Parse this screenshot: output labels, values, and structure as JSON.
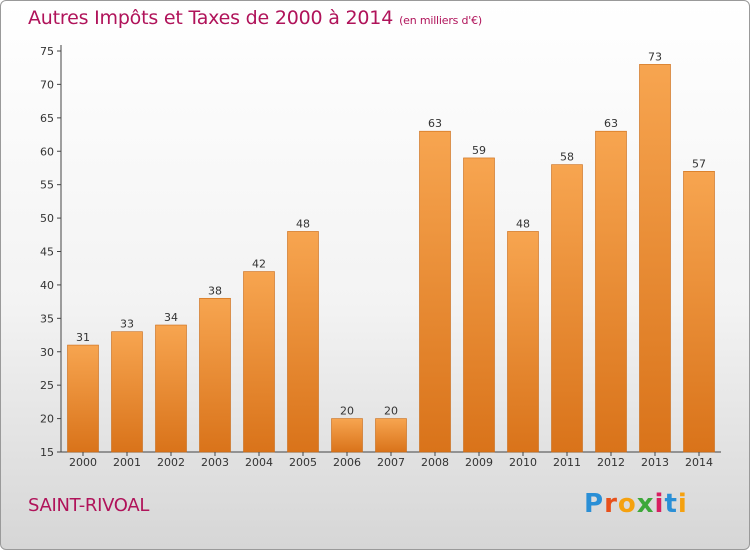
{
  "header": {
    "title": "Autres Impôts et Taxes de 2000 à 2014",
    "unit": "(en milliers d'€)"
  },
  "footer": {
    "place": "SAINT-RIVOAL",
    "brand": "Proxiti"
  },
  "colors": {
    "title": "#b0135a",
    "bar_light": "#f7a550",
    "bar_dark": "#d9731a"
  },
  "chart_data": {
    "type": "bar",
    "title": "Autres Impôts et Taxes de 2000 à 2014",
    "subtitle": "(en milliers d'€)",
    "xlabel": "",
    "ylabel": "",
    "categories": [
      "2000",
      "2001",
      "2002",
      "2003",
      "2004",
      "2005",
      "2006",
      "2007",
      "2008",
      "2009",
      "2010",
      "2011",
      "2012",
      "2013",
      "2014"
    ],
    "values": [
      31,
      33,
      34,
      38,
      42,
      48,
      20,
      20,
      63,
      59,
      48,
      58,
      63,
      73,
      57
    ],
    "ylim": [
      15,
      75
    ],
    "yticks": [
      15,
      20,
      25,
      30,
      35,
      40,
      45,
      50,
      55,
      60,
      65,
      70,
      75
    ],
    "grid": false,
    "legend": "none"
  }
}
